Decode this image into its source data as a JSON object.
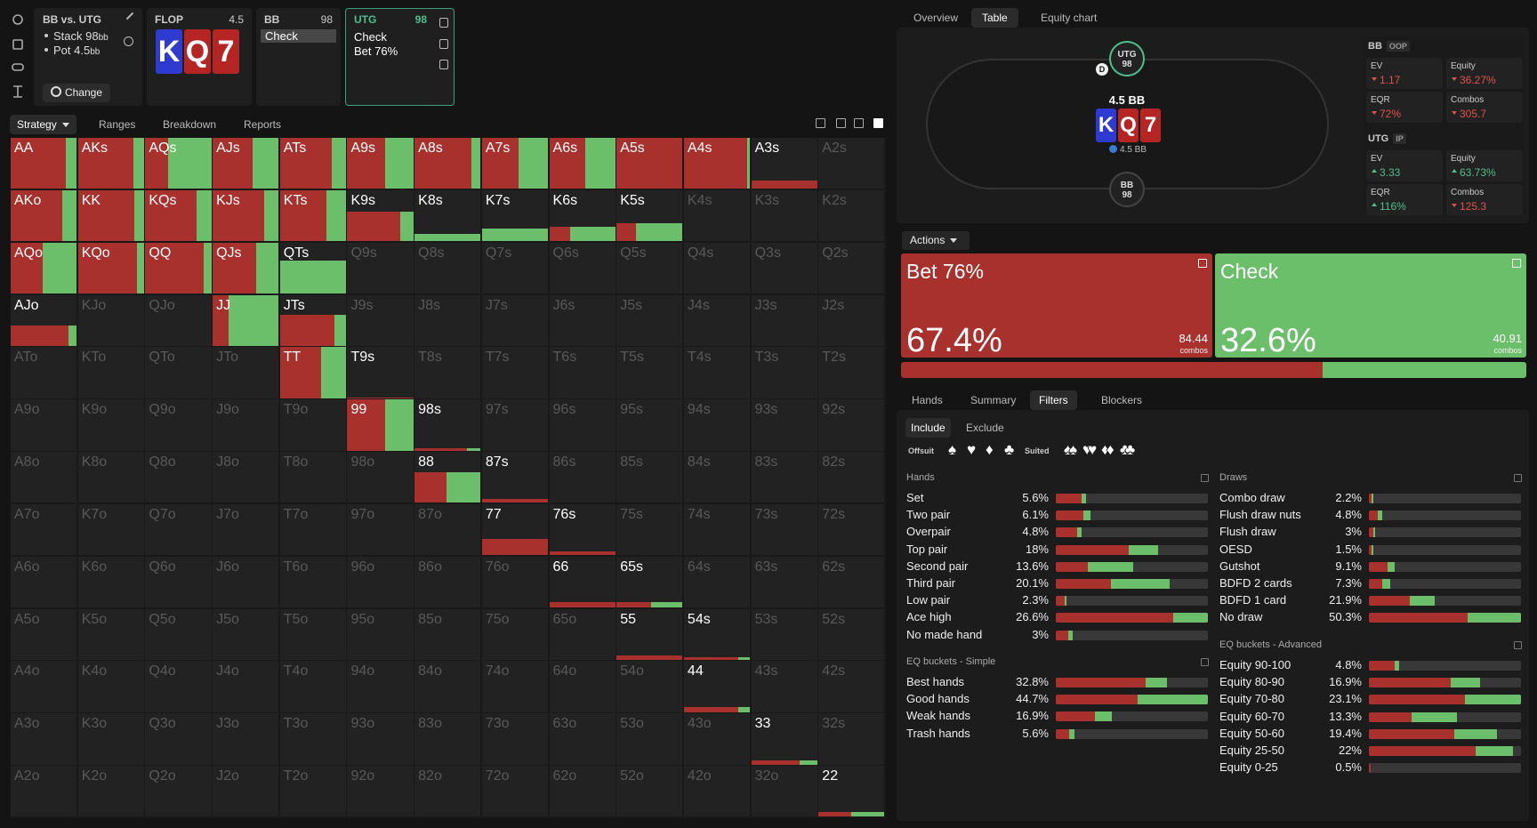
{
  "spot": {
    "title": "BB vs. UTG",
    "lines": [
      {
        "text": "Stack 98",
        "unit": "bb"
      },
      {
        "text": "Pot 4.5",
        "unit": "bb"
      }
    ],
    "button": "Change"
  },
  "street": {
    "name": "FLOP",
    "pot": "4.5",
    "board": [
      "K",
      "Q",
      "7"
    ],
    "card_colors": [
      "#2f3bd0",
      "#b42524",
      "#b42524"
    ]
  },
  "bb_node": {
    "player": "BB",
    "stack": "98",
    "action": "Check"
  },
  "utg_node": {
    "player": "UTG",
    "stack": "98",
    "actions": [
      "Check",
      "Bet 76%"
    ]
  },
  "left_tabs": [
    "Strategy",
    "Ranges",
    "Breakdown",
    "Reports"
  ],
  "matrix": {
    "colors": {
      "bet": "#a8302d",
      "check": "#6cbf6a"
    },
    "hands": [
      [
        "AA",
        "AKs",
        "AQs",
        "AJs",
        "ATs",
        "A9s",
        "A8s",
        "A7s",
        "A6s",
        "A5s",
        "A4s",
        "A3s",
        "A2s"
      ],
      [
        "AKo",
        "KK",
        "KQs",
        "KJs",
        "KTs",
        "K9s",
        "K8s",
        "K7s",
        "K6s",
        "K5s",
        "K4s",
        "K3s",
        "K2s"
      ],
      [
        "AQo",
        "KQo",
        "QQ",
        "QJs",
        "QTs",
        "Q9s",
        "Q8s",
        "Q7s",
        "Q6s",
        "Q5s",
        "Q4s",
        "Q3s",
        "Q2s"
      ],
      [
        "AJo",
        "KJo",
        "QJo",
        "JJ",
        "JTs",
        "J9s",
        "J8s",
        "J7s",
        "J6s",
        "J5s",
        "J4s",
        "J3s",
        "J2s"
      ],
      [
        "ATo",
        "KTo",
        "QTo",
        "JTo",
        "TT",
        "T9s",
        "T8s",
        "T7s",
        "T6s",
        "T5s",
        "T4s",
        "T3s",
        "T2s"
      ],
      [
        "A9o",
        "K9o",
        "Q9o",
        "J9o",
        "T9o",
        "99",
        "98s",
        "97s",
        "96s",
        "95s",
        "94s",
        "93s",
        "92s"
      ],
      [
        "A8o",
        "K8o",
        "Q8o",
        "J8o",
        "T8o",
        "98o",
        "88",
        "87s",
        "86s",
        "85s",
        "84s",
        "83s",
        "82s"
      ],
      [
        "A7o",
        "K7o",
        "Q7o",
        "J7o",
        "T7o",
        "97o",
        "87o",
        "77",
        "76s",
        "75s",
        "74s",
        "73s",
        "72s"
      ],
      [
        "A6o",
        "K6o",
        "Q6o",
        "J6o",
        "T6o",
        "96o",
        "86o",
        "76o",
        "66",
        "65s",
        "64s",
        "63s",
        "62s"
      ],
      [
        "A5o",
        "K5o",
        "Q5o",
        "J5o",
        "T5o",
        "95o",
        "85o",
        "75o",
        "65o",
        "55",
        "54s",
        "53s",
        "52s"
      ],
      [
        "A4o",
        "K4o",
        "Q4o",
        "J4o",
        "T4o",
        "94o",
        "84o",
        "74o",
        "64o",
        "54o",
        "44",
        "43s",
        "42s"
      ],
      [
        "A3o",
        "K3o",
        "Q3o",
        "J3o",
        "T3o",
        "93o",
        "83o",
        "73o",
        "63o",
        "53o",
        "43o",
        "33",
        "32s"
      ],
      [
        "A2o",
        "K2o",
        "Q2o",
        "J2o",
        "T2o",
        "92o",
        "82o",
        "72o",
        "62o",
        "52o",
        "42o",
        "32o",
        "22"
      ]
    ],
    "weight": [
      [
        100,
        100,
        100,
        100,
        100,
        100,
        100,
        100,
        100,
        100,
        100,
        17,
        0
      ],
      [
        100,
        100,
        100,
        100,
        100,
        58,
        15,
        25,
        28,
        36,
        0,
        0,
        0
      ],
      [
        100,
        100,
        100,
        100,
        65,
        0,
        0,
        0,
        0,
        0,
        0,
        0,
        0
      ],
      [
        40,
        0,
        0,
        100,
        60,
        0,
        0,
        0,
        0,
        0,
        0,
        0,
        0
      ],
      [
        0,
        0,
        0,
        0,
        100,
        1,
        0,
        0,
        0,
        0,
        0,
        0,
        0
      ],
      [
        0,
        0,
        0,
        0,
        0,
        100,
        4,
        0,
        0,
        0,
        0,
        0,
        0
      ],
      [
        0,
        0,
        0,
        0,
        0,
        0,
        60,
        8,
        0,
        0,
        0,
        0,
        0
      ],
      [
        0,
        0,
        0,
        0,
        0,
        0,
        0,
        32,
        8,
        0,
        0,
        0,
        0
      ],
      [
        0,
        0,
        0,
        0,
        0,
        0,
        0,
        0,
        10,
        10,
        0,
        0,
        0
      ],
      [
        0,
        0,
        0,
        0,
        0,
        0,
        0,
        0,
        0,
        8,
        6,
        0,
        0
      ],
      [
        0,
        0,
        0,
        0,
        0,
        0,
        0,
        0,
        0,
        0,
        10,
        0,
        0
      ],
      [
        0,
        0,
        0,
        0,
        0,
        0,
        0,
        0,
        0,
        0,
        0,
        8,
        0
      ],
      [
        0,
        0,
        0,
        0,
        0,
        0,
        0,
        0,
        0,
        0,
        0,
        0,
        10
      ]
    ],
    "bet": [
      [
        84,
        84,
        34,
        60,
        79,
        57,
        86,
        55,
        55,
        100,
        96,
        100,
        0
      ],
      [
        78,
        85,
        78,
        78,
        70,
        80,
        0,
        0,
        31,
        30,
        0,
        0,
        0
      ],
      [
        49,
        90,
        88,
        66,
        0,
        0,
        0,
        0,
        0,
        0,
        0,
        0,
        0
      ],
      [
        87,
        0,
        0,
        24,
        82,
        0,
        0,
        0,
        0,
        0,
        0,
        0,
        0
      ],
      [
        0,
        0,
        0,
        0,
        62,
        100,
        0,
        0,
        0,
        0,
        0,
        0,
        0
      ],
      [
        0,
        0,
        0,
        0,
        0,
        57,
        80,
        0,
        0,
        0,
        0,
        0,
        0
      ],
      [
        0,
        0,
        0,
        0,
        0,
        0,
        48,
        100,
        0,
        0,
        0,
        0,
        0
      ],
      [
        0,
        0,
        0,
        0,
        0,
        0,
        0,
        100,
        100,
        0,
        0,
        0,
        0
      ],
      [
        0,
        0,
        0,
        0,
        0,
        0,
        0,
        0,
        100,
        52,
        0,
        0,
        0
      ],
      [
        0,
        0,
        0,
        0,
        0,
        0,
        0,
        0,
        0,
        100,
        83,
        0,
        0
      ],
      [
        0,
        0,
        0,
        0,
        0,
        0,
        0,
        0,
        0,
        0,
        83,
        0,
        0
      ],
      [
        0,
        0,
        0,
        0,
        0,
        0,
        0,
        0,
        0,
        0,
        0,
        73,
        0
      ],
      [
        0,
        0,
        0,
        0,
        0,
        0,
        0,
        0,
        0,
        0,
        0,
        0,
        50
      ]
    ]
  },
  "right_tabs": [
    "Overview",
    "Table",
    "Equity chart"
  ],
  "table": {
    "seats": [
      {
        "name": "UTG",
        "stack": "98"
      },
      {
        "name": "BB",
        "stack": "98"
      }
    ],
    "dealer": "D",
    "pot_label": "4.5 BB",
    "chips": "4.5 BB"
  },
  "stats": [
    {
      "player": "BB",
      "position": "OOP",
      "metrics": [
        {
          "name": "EV",
          "value": "1.17",
          "trend": "down"
        },
        {
          "name": "Equity",
          "value": "36.27%",
          "trend": "down"
        },
        {
          "name": "EQR",
          "value": "72%",
          "trend": "down"
        },
        {
          "name": "Combos",
          "value": "305.7",
          "trend": "down"
        }
      ]
    },
    {
      "player": "UTG",
      "position": "IP",
      "metrics": [
        {
          "name": "EV",
          "value": "3.33",
          "trend": "up"
        },
        {
          "name": "Equity",
          "value": "63.73%",
          "trend": "up"
        },
        {
          "name": "EQR",
          "value": "116%",
          "trend": "up"
        },
        {
          "name": "Combos",
          "value": "125.3",
          "trend": "down"
        }
      ]
    }
  ],
  "actions": {
    "menu": "Actions",
    "items": [
      {
        "name": "Bet 76%",
        "freq": 67.4,
        "freq_label": "67.4%",
        "combos": "84.44",
        "unit": "combos",
        "color": "#a8302d"
      },
      {
        "name": "Check",
        "freq": 32.6,
        "freq_label": "32.6%",
        "combos": "40.91",
        "unit": "combos",
        "color": "#6cbf6a"
      }
    ]
  },
  "lower_tabs": [
    "Hands",
    "Summary",
    "Filters",
    "Blockers"
  ],
  "filter_modes": [
    "Include",
    "Exclude"
  ],
  "offsuit_label": "Offsuit",
  "suited_label": "Suited",
  "suits": [
    "♠",
    "♥",
    "♦",
    "♣"
  ],
  "groups": [
    {
      "title": "Hands",
      "rows": [
        {
          "name": "Set",
          "pct": "5.6%",
          "bar": [
            17,
            3
          ]
        },
        {
          "name": "Two pair",
          "pct": "6.1%",
          "bar": [
            18,
            5
          ]
        },
        {
          "name": "Overpair",
          "pct": "4.8%",
          "bar": [
            14,
            3
          ]
        },
        {
          "name": "Top pair",
          "pct": "18%",
          "bar": [
            48,
            19
          ]
        },
        {
          "name": "Second pair",
          "pct": "13.6%",
          "bar": [
            21,
            30
          ]
        },
        {
          "name": "Third pair",
          "pct": "20.1%",
          "bar": [
            36,
            39
          ]
        },
        {
          "name": "Low pair",
          "pct": "2.3%",
          "bar": [
            6,
            1
          ]
        },
        {
          "name": "Ace high",
          "pct": "26.6%",
          "bar": [
            77,
            23
          ]
        },
        {
          "name": "No made hand",
          "pct": "3%",
          "bar": [
            8,
            3
          ]
        }
      ]
    },
    {
      "title": "Draws",
      "rows": [
        {
          "name": "Combo draw",
          "pct": "2.2%",
          "bar": [
            2,
            1
          ]
        },
        {
          "name": "Flush draw nuts",
          "pct": "4.8%",
          "bar": [
            6,
            3
          ]
        },
        {
          "name": "Flush draw",
          "pct": "3%",
          "bar": [
            3,
            1
          ]
        },
        {
          "name": "OESD",
          "pct": "1.5%",
          "bar": [
            2,
            1
          ]
        },
        {
          "name": "Gutshot",
          "pct": "9.1%",
          "bar": [
            12,
            5
          ]
        },
        {
          "name": "BDFD 2 cards",
          "pct": "7.3%",
          "bar": [
            9,
            5
          ]
        },
        {
          "name": "BDFD 1 card",
          "pct": "21.9%",
          "bar": [
            27,
            16
          ]
        },
        {
          "name": "No draw",
          "pct": "50.3%",
          "bar": [
            65,
            35
          ]
        }
      ]
    },
    {
      "title": "EQ buckets - Simple",
      "rows": [
        {
          "name": "Best hands",
          "pct": "32.8%",
          "bar": [
            59,
            14
          ]
        },
        {
          "name": "Good hands",
          "pct": "44.7%",
          "bar": [
            54,
            46
          ]
        },
        {
          "name": "Weak hands",
          "pct": "16.9%",
          "bar": [
            26,
            11
          ]
        },
        {
          "name": "Trash hands",
          "pct": "5.6%",
          "bar": [
            9,
            3
          ]
        }
      ]
    },
    {
      "title": "EQ buckets - Advanced",
      "rows": [
        {
          "name": "Equity 90-100",
          "pct": "4.8%",
          "bar": [
            17,
            3
          ]
        },
        {
          "name": "Equity 80-90",
          "pct": "16.9%",
          "bar": [
            54,
            19
          ]
        },
        {
          "name": "Equity 70-80",
          "pct": "23.1%",
          "bar": [
            63,
            37
          ]
        },
        {
          "name": "Equity 60-70",
          "pct": "13.3%",
          "bar": [
            28,
            30
          ]
        },
        {
          "name": "Equity 50-60",
          "pct": "19.4%",
          "bar": [
            56,
            28
          ]
        },
        {
          "name": "Equity 25-50",
          "pct": "22%",
          "bar": [
            70,
            25
          ]
        },
        {
          "name": "Equity 0-25",
          "pct": "0.5%",
          "bar": [
            1,
            0
          ]
        }
      ]
    }
  ]
}
